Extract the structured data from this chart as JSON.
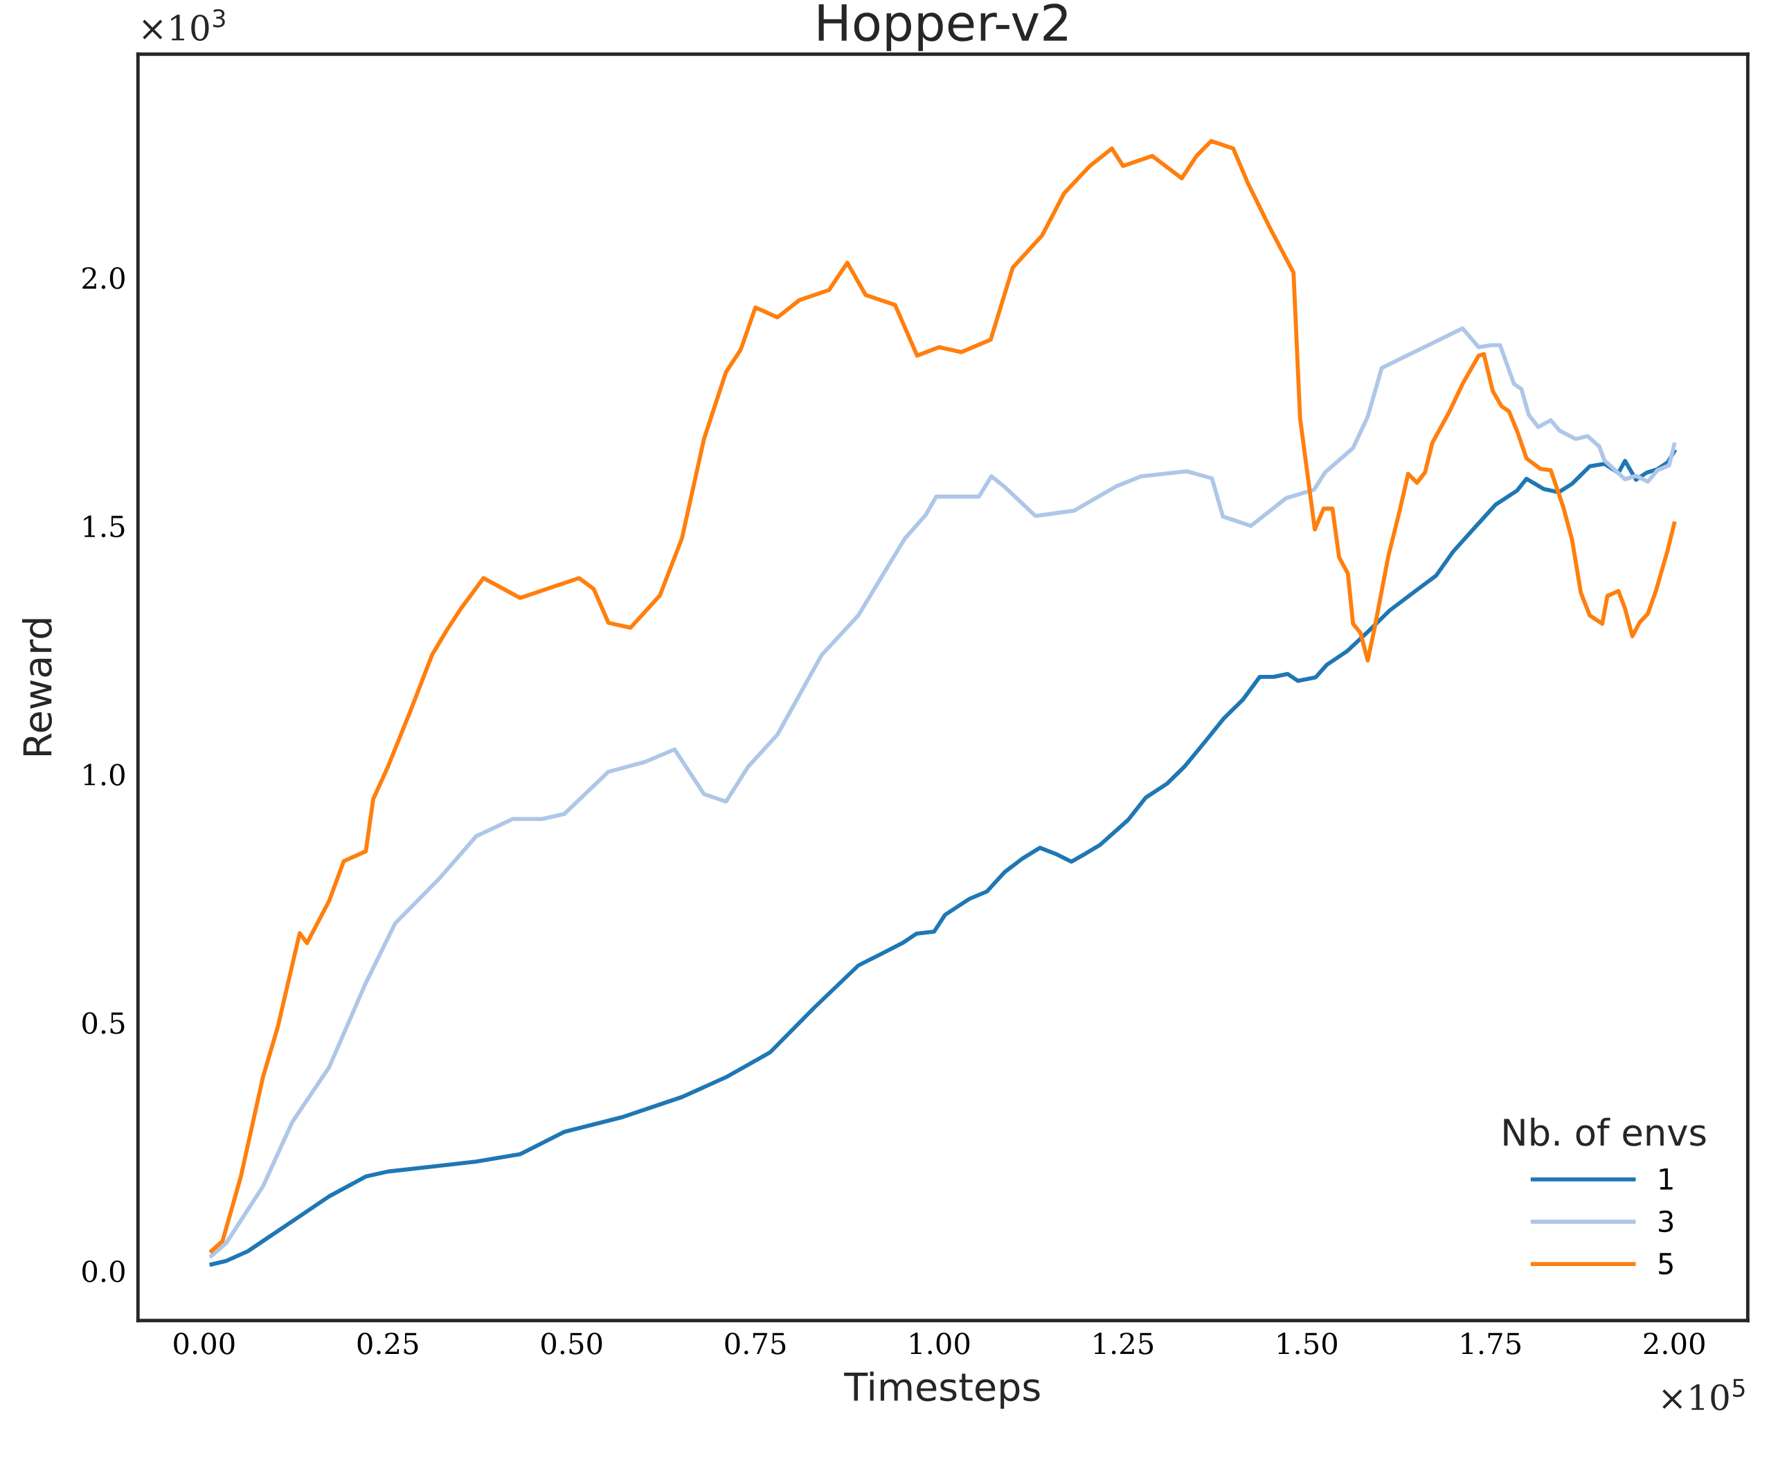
{
  "chart_data": {
    "type": "line",
    "title": "Hopper-v2",
    "xlabel": "Timesteps",
    "ylabel": "Reward",
    "legend_title": "Nb. of envs",
    "legend": "bottom right",
    "grid": false,
    "annotations": [
      "×10$^{3}$",
      "×10$^{5}$"
    ],
    "xlim": [
      -0.09,
      2.1
    ],
    "ylim": [
      -0.1,
      2.45
    ],
    "xticks": [
      {
        "value": 0,
        "label": "0.00"
      },
      {
        "value": 0.25,
        "label": "0.25"
      },
      {
        "value": 0.5,
        "label": "0.50"
      },
      {
        "value": 0.75,
        "label": "0.75"
      },
      {
        "value": 1,
        "label": "1.00"
      },
      {
        "value": 1.25,
        "label": "1.25"
      },
      {
        "value": 1.5,
        "label": "1.50"
      },
      {
        "value": 1.75,
        "label": "1.75"
      },
      {
        "value": 2,
        "label": "2.00"
      }
    ],
    "yticks": [
      {
        "value": 0,
        "label": "0.0"
      },
      0.5,
      {
        "value": 1,
        "label": "1.0"
      },
      1.5,
      {
        "value": 2,
        "label": "2.0"
      }
    ],
    "series": [
      {
        "name": "1",
        "color": "#1f77b4",
        "x": [
          0.01,
          0.03,
          0.06,
          0.09,
          0.13,
          0.17,
          0.22,
          0.25,
          0.31,
          0.37,
          0.43,
          0.49,
          0.57,
          0.65,
          0.71,
          0.77,
          0.83,
          0.89,
          0.95,
          0.969,
          0.993,
          1.008,
          1.041,
          1.065,
          1.089,
          1.113,
          1.137,
          1.161,
          1.18,
          1.2,
          1.219,
          1.257,
          1.281,
          1.31,
          1.334,
          1.363,
          1.387,
          1.413,
          1.436,
          1.455,
          1.474,
          1.488,
          1.512,
          1.527,
          1.555,
          1.584,
          1.613,
          1.647,
          1.676,
          1.699,
          1.733,
          1.757,
          1.786,
          1.799,
          1.823,
          1.843,
          1.861,
          1.885,
          1.905,
          1.924,
          1.933,
          1.948,
          1.962,
          1.977,
          1.991,
          2.0
        ],
        "values": [
          0.013,
          0.02,
          0.04,
          0.07,
          0.11,
          0.15,
          0.19,
          0.2,
          0.21,
          0.22,
          0.235,
          0.28,
          0.31,
          0.35,
          0.39,
          0.44,
          0.53,
          0.615,
          0.66,
          0.679,
          0.683,
          0.717,
          0.749,
          0.764,
          0.803,
          0.83,
          0.852,
          0.838,
          0.824,
          0.841,
          0.858,
          0.908,
          0.953,
          0.981,
          1.016,
          1.068,
          1.112,
          1.15,
          1.196,
          1.196,
          1.202,
          1.188,
          1.195,
          1.22,
          1.248,
          1.288,
          1.33,
          1.368,
          1.4,
          1.448,
          1.504,
          1.543,
          1.571,
          1.595,
          1.574,
          1.568,
          1.585,
          1.62,
          1.625,
          1.607,
          1.631,
          1.593,
          1.607,
          1.614,
          1.628,
          1.65
        ]
      },
      {
        "name": "3",
        "color": "#aec7e8",
        "x": [
          0.01,
          0.03,
          0.08,
          0.12,
          0.17,
          0.22,
          0.26,
          0.29,
          0.32,
          0.37,
          0.42,
          0.46,
          0.49,
          0.55,
          0.6,
          0.64,
          0.68,
          0.71,
          0.74,
          0.78,
          0.84,
          0.89,
          0.953,
          0.982,
          0.996,
          1.054,
          1.071,
          1.088,
          1.131,
          1.184,
          1.241,
          1.275,
          1.337,
          1.371,
          1.386,
          1.424,
          1.472,
          1.51,
          1.525,
          1.563,
          1.583,
          1.602,
          1.712,
          1.734,
          1.751,
          1.763,
          1.782,
          1.792,
          1.802,
          1.815,
          1.832,
          1.844,
          1.866,
          1.882,
          1.898,
          1.905,
          1.933,
          1.948,
          1.964,
          1.977,
          1.993,
          2.0
        ],
        "values": [
          0.03,
          0.056,
          0.17,
          0.3,
          0.41,
          0.58,
          0.7,
          0.745,
          0.79,
          0.875,
          0.91,
          0.91,
          0.92,
          1.005,
          1.025,
          1.05,
          0.96,
          0.945,
          1.015,
          1.08,
          1.24,
          1.32,
          1.474,
          1.523,
          1.559,
          1.559,
          1.6,
          1.58,
          1.52,
          1.531,
          1.58,
          1.6,
          1.61,
          1.596,
          1.519,
          1.5,
          1.556,
          1.573,
          1.608,
          1.657,
          1.72,
          1.818,
          1.898,
          1.86,
          1.864,
          1.864,
          1.786,
          1.776,
          1.724,
          1.699,
          1.713,
          1.692,
          1.675,
          1.681,
          1.66,
          1.632,
          1.594,
          1.601,
          1.589,
          1.612,
          1.622,
          1.664
        ]
      },
      {
        "name": "5",
        "color": "#ff7f0e",
        "x": [
          0.01,
          0.025,
          0.05,
          0.08,
          0.1,
          0.13,
          0.14,
          0.17,
          0.19,
          0.22,
          0.23,
          0.25,
          0.28,
          0.31,
          0.33,
          0.35,
          0.38,
          0.43,
          0.46,
          0.51,
          0.53,
          0.55,
          0.58,
          0.62,
          0.65,
          0.68,
          0.71,
          0.73,
          0.75,
          0.78,
          0.81,
          0.85,
          0.875,
          0.9,
          0.94,
          0.97,
          1.0,
          1.03,
          1.07,
          1.1,
          1.14,
          1.17,
          1.205,
          1.235,
          1.25,
          1.29,
          1.33,
          1.35,
          1.37,
          1.4,
          1.42,
          1.45,
          1.482,
          1.491,
          1.511,
          1.523,
          1.535,
          1.544,
          1.556,
          1.563,
          1.573,
          1.583,
          1.592,
          1.611,
          1.626,
          1.638,
          1.65,
          1.661,
          1.671,
          1.693,
          1.712,
          1.734,
          1.741,
          1.753,
          1.765,
          1.775,
          1.786,
          1.799,
          1.818,
          1.832,
          1.849,
          1.861,
          1.873,
          1.885,
          1.902,
          1.909,
          1.924,
          1.933,
          1.943,
          1.953,
          1.964,
          1.975,
          1.991,
          2.0
        ],
        "values": [
          0.04,
          0.06,
          0.19,
          0.39,
          0.49,
          0.68,
          0.66,
          0.745,
          0.825,
          0.845,
          0.95,
          1.015,
          1.125,
          1.24,
          1.29,
          1.335,
          1.395,
          1.355,
          1.37,
          1.395,
          1.373,
          1.305,
          1.295,
          1.36,
          1.475,
          1.675,
          1.81,
          1.855,
          1.94,
          1.92,
          1.955,
          1.975,
          2.03,
          1.965,
          1.945,
          1.843,
          1.86,
          1.85,
          1.875,
          2.02,
          2.085,
          2.17,
          2.225,
          2.26,
          2.225,
          2.245,
          2.2,
          2.245,
          2.275,
          2.26,
          2.19,
          2.1,
          2.01,
          1.716,
          1.493,
          1.535,
          1.535,
          1.437,
          1.404,
          1.303,
          1.285,
          1.229,
          1.292,
          1.439,
          1.528,
          1.605,
          1.587,
          1.608,
          1.668,
          1.727,
          1.786,
          1.843,
          1.846,
          1.772,
          1.741,
          1.731,
          1.692,
          1.636,
          1.615,
          1.612,
          1.538,
          1.472,
          1.365,
          1.32,
          1.303,
          1.359,
          1.369,
          1.334,
          1.278,
          1.306,
          1.323,
          1.369,
          1.451,
          1.505
        ]
      }
    ]
  }
}
